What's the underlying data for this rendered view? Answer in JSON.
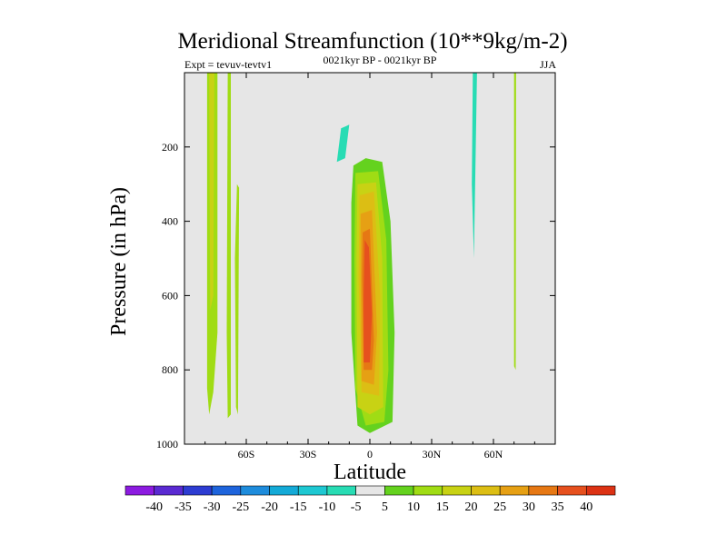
{
  "chart_data": {
    "type": "heatmap",
    "title": "Meridional Streamfunction (10**9kg/m-2)",
    "subtitle_center": "0021kyr BP - 0021kyr BP",
    "subtitle_left": "Expt = tevuv-tevtv1",
    "subtitle_right": "JJA",
    "xlabel": "Latitude",
    "ylabel": "Pressure (in hPa)",
    "x_range": [
      -90,
      90
    ],
    "y_range": [
      1000,
      0
    ],
    "x_ticks": [
      {
        "value": -60,
        "label": "60S"
      },
      {
        "value": -30,
        "label": "30S"
      },
      {
        "value": 0,
        "label": "0"
      },
      {
        "value": 30,
        "label": "30N"
      },
      {
        "value": 60,
        "label": "60N"
      }
    ],
    "y_ticks": [
      {
        "value": 200,
        "label": "200"
      },
      {
        "value": 400,
        "label": "400"
      },
      {
        "value": 600,
        "label": "600"
      },
      {
        "value": 800,
        "label": "800"
      },
      {
        "value": 1000,
        "label": "1000"
      }
    ],
    "missing_color": "#e6e6e6",
    "colorbar": {
      "labels": [
        "-40",
        "-35",
        "-30",
        "-25",
        "-20",
        "-15",
        "-10",
        "-5",
        "5",
        "10",
        "15",
        "20",
        "25",
        "30",
        "35",
        "40"
      ],
      "colors": [
        "#8c1be0",
        "#5a2ad2",
        "#2d3cd2",
        "#1e64dc",
        "#1e8cdc",
        "#14aad7",
        "#1ec8d2",
        "#28dcb4",
        "#e6e6e6",
        "#64d21e",
        "#a0dc14",
        "#c8d214",
        "#dcbe14",
        "#e6a014",
        "#e67814",
        "#e6501e",
        "#dc3214"
      ]
    },
    "regions": [
      {
        "name": "sh-highlat-positive-band",
        "value": 10,
        "points": [
          [
            -79,
            0
          ],
          [
            -74,
            0
          ],
          [
            -74,
            700
          ],
          [
            -76,
            860
          ],
          [
            -78,
            920
          ],
          [
            -79,
            850
          ]
        ]
      },
      {
        "name": "sh-highlat-positive-band-inner",
        "value": 15,
        "points": [
          [
            -78,
            0
          ],
          [
            -75.5,
            0
          ],
          [
            -76,
            600
          ],
          [
            -77.5,
            640
          ]
        ]
      },
      {
        "name": "sh-midlat-strip-a",
        "value": 10,
        "points": [
          [
            -69,
            0
          ],
          [
            -67.5,
            0
          ],
          [
            -67.5,
            920
          ],
          [
            -69,
            930
          ],
          [
            -69.5,
            700
          ]
        ]
      },
      {
        "name": "sh-midlat-strip-b",
        "value": 10,
        "points": [
          [
            -64.5,
            300
          ],
          [
            -63.5,
            310
          ],
          [
            -64,
            920
          ],
          [
            -65,
            900
          ],
          [
            -65.5,
            500
          ]
        ]
      },
      {
        "name": "upper-trop-negative",
        "value": -5,
        "points": [
          [
            -15,
            0
          ],
          [
            -3,
            0
          ],
          [
            -3,
            150
          ],
          [
            -7,
            195
          ],
          [
            -11,
            300
          ],
          [
            -16,
            250
          ],
          [
            -13,
            170
          ]
        ]
      },
      {
        "name": "upper-trop-negative-inner",
        "value": -10,
        "points": [
          [
            -14,
            150
          ],
          [
            -10,
            140
          ],
          [
            -12,
            230
          ],
          [
            -16,
            240
          ]
        ]
      },
      {
        "name": "ne-upper-trop-negative",
        "value": -5,
        "points": [
          [
            -2,
            0
          ],
          [
            3,
            0
          ],
          [
            3,
            125
          ],
          [
            0,
            135
          ]
        ]
      },
      {
        "name": "tropical-cell-5",
        "value": 5,
        "points": [
          [
            -8,
            250
          ],
          [
            -2,
            230
          ],
          [
            6,
            240
          ],
          [
            10,
            400
          ],
          [
            12,
            700
          ],
          [
            11,
            940
          ],
          [
            0,
            970
          ],
          [
            -6,
            950
          ],
          [
            -9,
            700
          ],
          [
            -9,
            350
          ]
        ]
      },
      {
        "name": "tropical-cell-10",
        "value": 10,
        "points": [
          [
            -7,
            270
          ],
          [
            4,
            265
          ],
          [
            8,
            450
          ],
          [
            9,
            800
          ],
          [
            7,
            940
          ],
          [
            -2,
            950
          ],
          [
            -7,
            850
          ],
          [
            -7.5,
            500
          ]
        ]
      },
      {
        "name": "tropical-cell-15",
        "value": 15,
        "points": [
          [
            -6,
            300
          ],
          [
            3,
            295
          ],
          [
            6,
            500
          ],
          [
            6.5,
            900
          ],
          [
            0,
            920
          ],
          [
            -6,
            900
          ],
          [
            -6.5,
            500
          ]
        ]
      },
      {
        "name": "tropical-cell-20",
        "value": 20,
        "points": [
          [
            -5,
            330
          ],
          [
            2,
            320
          ],
          [
            5,
            600
          ],
          [
            4.5,
            870
          ],
          [
            -4,
            860
          ],
          [
            -5.5,
            550
          ]
        ]
      },
      {
        "name": "tropical-cell-25",
        "value": 25,
        "points": [
          [
            -4.5,
            380
          ],
          [
            1,
            370
          ],
          [
            3.5,
            700
          ],
          [
            2,
            840
          ],
          [
            -4,
            830
          ],
          [
            -4.5,
            550
          ]
        ]
      },
      {
        "name": "tropical-cell-30",
        "value": 30,
        "points": [
          [
            -3.5,
            430
          ],
          [
            0,
            420
          ],
          [
            2,
            720
          ],
          [
            1,
            800
          ],
          [
            -3,
            800
          ],
          [
            -3.8,
            550
          ]
        ]
      },
      {
        "name": "tropical-cell-35",
        "value": 35,
        "points": [
          [
            -2.5,
            450
          ],
          [
            -0.5,
            470
          ],
          [
            1,
            650
          ],
          [
            0,
            780
          ],
          [
            -3,
            780
          ],
          [
            -3,
            600
          ]
        ]
      },
      {
        "name": "nh-midlat-negative-band-a",
        "value": -5,
        "points": [
          [
            44,
            0
          ],
          [
            52,
            0
          ],
          [
            50,
            900
          ],
          [
            47,
            940
          ],
          [
            45,
            920
          ],
          [
            44,
            500
          ]
        ]
      },
      {
        "name": "nh-midlat-negative-band-b",
        "value": -5,
        "points": [
          [
            57,
            0
          ],
          [
            66,
            0
          ],
          [
            64,
            930
          ],
          [
            60,
            950
          ],
          [
            58,
            920
          ],
          [
            57,
            400
          ]
        ]
      },
      {
        "name": "nh-midlat-negative-band-a-edge",
        "value": -10,
        "points": [
          [
            50,
            0
          ],
          [
            52,
            0
          ],
          [
            50.5,
            500
          ],
          [
            49.5,
            300
          ]
        ]
      },
      {
        "name": "nh-highlat-positive-strip",
        "value": 10,
        "points": [
          [
            70,
            0
          ],
          [
            71,
            0
          ],
          [
            70.8,
            800
          ],
          [
            70,
            790
          ]
        ]
      }
    ]
  }
}
